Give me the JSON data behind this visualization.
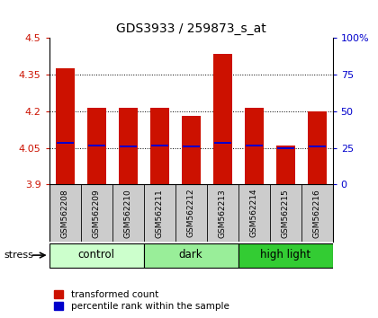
{
  "title": "GDS3933 / 259873_s_at",
  "samples": [
    "GSM562208",
    "GSM562209",
    "GSM562210",
    "GSM562211",
    "GSM562212",
    "GSM562213",
    "GSM562214",
    "GSM562215",
    "GSM562216"
  ],
  "bar_tops": [
    4.375,
    4.215,
    4.215,
    4.215,
    4.18,
    4.435,
    4.215,
    4.06,
    4.2
  ],
  "bar_bottoms": [
    3.9,
    3.9,
    3.9,
    3.9,
    3.9,
    3.9,
    3.9,
    3.9,
    3.9
  ],
  "percentile_values": [
    4.07,
    4.06,
    4.055,
    4.06,
    4.055,
    4.07,
    4.06,
    4.048,
    4.055
  ],
  "bar_color": "#cc1100",
  "percentile_color": "#0000cc",
  "ylim": [
    3.9,
    4.5
  ],
  "yticks": [
    3.9,
    4.05,
    4.2,
    4.35,
    4.5
  ],
  "right_yticks": [
    0,
    25,
    50,
    75,
    100
  ],
  "right_ylim": [
    0,
    100
  ],
  "groups": [
    {
      "label": "control",
      "start": 0,
      "end": 3,
      "color": "#ccffcc"
    },
    {
      "label": "dark",
      "start": 3,
      "end": 6,
      "color": "#99ee99"
    },
    {
      "label": "high light",
      "start": 6,
      "end": 9,
      "color": "#33cc33"
    }
  ],
  "stress_label": "stress",
  "legend_entries": [
    "transformed count",
    "percentile rank within the sample"
  ],
  "bar_width": 0.6,
  "plot_bg": "#ffffff",
  "tick_color_left": "#cc1100",
  "tick_color_right": "#0000cc",
  "sample_bg": "#cccccc"
}
